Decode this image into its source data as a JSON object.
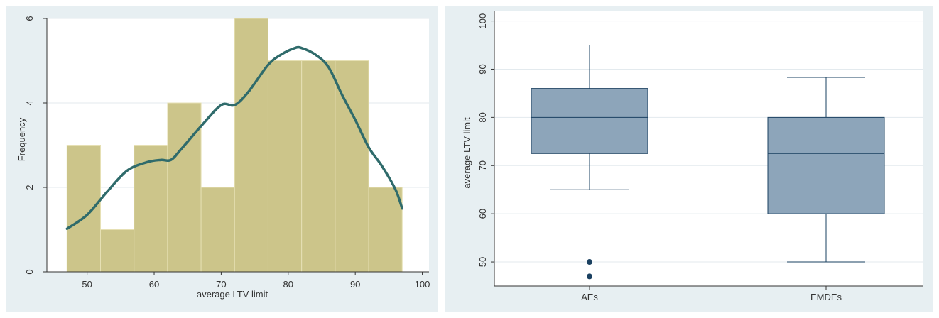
{
  "chart_data": [
    {
      "type": "bar",
      "subtype": "histogram_with_density",
      "xlabel": "average LTV limit",
      "ylabel": "Frequency",
      "xlim": [
        44,
        101
      ],
      "ylim": [
        0,
        6
      ],
      "x_ticks": [
        "50",
        "60",
        "70",
        "80",
        "90",
        "100"
      ],
      "y_ticks": [
        "0",
        "2",
        "4",
        "6"
      ],
      "bin_width": 5,
      "bins": [
        {
          "start": 47,
          "end": 52,
          "count": 3
        },
        {
          "start": 52,
          "end": 57,
          "count": 1
        },
        {
          "start": 57,
          "end": 62,
          "count": 3
        },
        {
          "start": 62,
          "end": 67,
          "count": 4
        },
        {
          "start": 67,
          "end": 72,
          "count": 2
        },
        {
          "start": 72,
          "end": 77,
          "count": 6
        },
        {
          "start": 77,
          "end": 82,
          "count": 5
        },
        {
          "start": 82,
          "end": 87,
          "count": 5
        },
        {
          "start": 87,
          "end": 92,
          "count": 5
        },
        {
          "start": 92,
          "end": 97,
          "count": 2
        }
      ],
      "density_curve": {
        "x": [
          47,
          50,
          53,
          56,
          59,
          61,
          62.5,
          64,
          67,
          70,
          72,
          74,
          77,
          79,
          81,
          82,
          84,
          86,
          88,
          90,
          92,
          94,
          96,
          97
        ],
        "y": [
          1.02,
          1.35,
          1.9,
          2.4,
          2.6,
          2.65,
          2.65,
          2.9,
          3.45,
          3.95,
          3.95,
          4.25,
          4.9,
          5.15,
          5.3,
          5.3,
          5.15,
          4.85,
          4.2,
          3.6,
          2.95,
          2.5,
          1.95,
          1.5
        ]
      },
      "colors": {
        "bar_fill": "#ccc58a",
        "bar_edge": "#e6e0b4",
        "curve": "#2f6b6b",
        "grid": "#e3eaee",
        "plot_bg": "#ffffff",
        "panel_bg": "#e7eff2"
      },
      "grid": true
    },
    {
      "type": "box",
      "xlabel": "",
      "ylabel": "average LTV limit",
      "ylim": [
        45,
        102
      ],
      "y_ticks": [
        "50",
        "60",
        "70",
        "80",
        "90",
        "100"
      ],
      "categories": [
        "AEs",
        "EMDEs"
      ],
      "boxes": [
        {
          "category": "AEs",
          "whisker_low": 65,
          "q1": 72.5,
          "median": 80,
          "q3": 86,
          "whisker_high": 95,
          "outliers": [
            50,
            47
          ]
        },
        {
          "category": "EMDEs",
          "whisker_low": 50,
          "q1": 60,
          "median": 72.5,
          "q3": 80,
          "whisker_high": 88.3,
          "outliers": []
        }
      ],
      "colors": {
        "box_fill": "#8da5ba",
        "line": "#1a4060",
        "outlier": "#1a4060",
        "grid": "#e3eaee",
        "plot_bg": "#ffffff",
        "panel_bg": "#e7eff2"
      },
      "grid": true
    }
  ]
}
